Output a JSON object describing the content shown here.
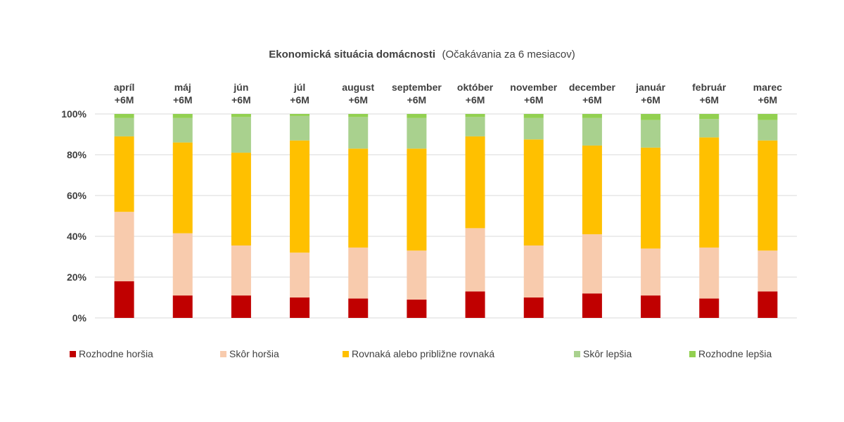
{
  "chart_data": {
    "type": "bar",
    "stacked": true,
    "title": "Ekonomická situácia domácnosti",
    "subtitle": "(Očakávania za 6 mesiacov)",
    "categories": [
      [
        "apríl",
        "+6M"
      ],
      [
        "máj",
        "+6M"
      ],
      [
        "jún",
        "+6M"
      ],
      [
        "júl",
        "+6M"
      ],
      [
        "august",
        "+6M"
      ],
      [
        "september",
        "+6M"
      ],
      [
        "október",
        "+6M"
      ],
      [
        "november",
        "+6M"
      ],
      [
        "december",
        "+6M"
      ],
      [
        "január",
        "+6M"
      ],
      [
        "február",
        "+6M"
      ],
      [
        "marec",
        "+6M"
      ]
    ],
    "ylim": [
      0,
      100
    ],
    "yticks": [
      "0%",
      "20%",
      "40%",
      "60%",
      "80%",
      "100%"
    ],
    "grid": true,
    "legend_position": "bottom",
    "series": [
      {
        "name": "Rozhodne horšia",
        "color": "#c00000",
        "values": [
          18,
          11,
          11,
          10,
          9.5,
          9,
          13,
          10,
          12,
          11,
          9.5,
          13
        ]
      },
      {
        "name": "Skôr horšia",
        "color": "#f8cbad",
        "values": [
          34,
          30.5,
          24.5,
          22,
          25,
          24,
          31,
          25.5,
          29,
          23,
          25,
          20
        ]
      },
      {
        "name": "Rovnaká alebo približne rovnaká",
        "color": "#ffc000",
        "values": [
          37,
          44.5,
          45.5,
          55,
          48.5,
          50,
          45,
          52,
          43.5,
          49.5,
          54,
          54
        ]
      },
      {
        "name": "Skôr lepšia",
        "color": "#a9d18e",
        "values": [
          9,
          12,
          17.5,
          12,
          15.5,
          15,
          9.5,
          10.5,
          13.5,
          13.5,
          9,
          10
        ]
      },
      {
        "name": "Rozhodne lepšia",
        "color": "#92d050",
        "values": [
          2,
          2,
          1.5,
          1,
          1.5,
          2,
          1.5,
          2,
          2,
          3,
          2.5,
          3
        ]
      }
    ]
  }
}
